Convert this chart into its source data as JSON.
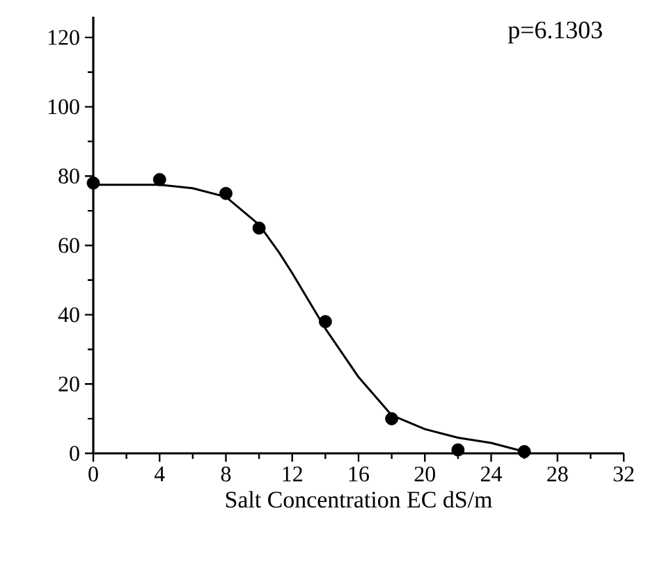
{
  "chart_data": {
    "type": "scatter",
    "xlabel": "Salt Concentration EC dS/m",
    "annotations": [
      "p=6.1303"
    ],
    "xlim": [
      0,
      32
    ],
    "xticks": [
      0,
      4,
      8,
      12,
      16,
      20,
      24,
      28,
      32
    ],
    "ylim": [
      0,
      126
    ],
    "yticks": [
      0,
      20,
      40,
      60,
      80,
      100,
      120
    ],
    "grid": false,
    "series": [
      {
        "color": "#000000",
        "marker": "circle",
        "x": [
          0,
          4,
          8,
          10,
          14,
          18,
          22,
          26
        ],
        "values": [
          78,
          79,
          75,
          65,
          38,
          10,
          1,
          0.5
        ]
      },
      {
        "type": "line",
        "color": "#000000",
        "marker": "none",
        "line_style": "solid",
        "x": [
          0,
          4,
          6,
          8,
          10,
          11.2,
          12,
          14,
          16,
          18,
          20,
          22,
          24,
          25.2,
          26
        ],
        "values": [
          77.5,
          77.5,
          76.5,
          74,
          66,
          58,
          52,
          36,
          22,
          11,
          7,
          4.5,
          3,
          1.5,
          0.5
        ]
      }
    ]
  }
}
